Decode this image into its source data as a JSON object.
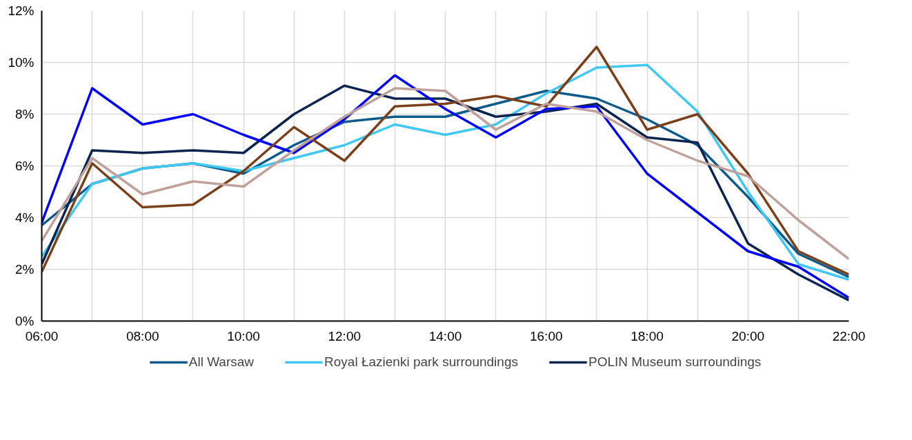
{
  "chart_data": {
    "type": "line",
    "x": [
      6,
      7,
      8,
      9,
      10,
      11,
      12,
      13,
      14,
      15,
      16,
      17,
      18,
      19,
      20,
      21,
      22
    ],
    "series": [
      {
        "name": "All Warsaw",
        "color": "#0b5a8c",
        "values": [
          3.7,
          5.3,
          5.9,
          6.1,
          5.7,
          6.8,
          7.7,
          7.9,
          7.9,
          8.4,
          8.9,
          8.6,
          7.8,
          6.8,
          4.8,
          2.6,
          1.7
        ]
      },
      {
        "name": "Royal Łazienki park surroundings",
        "color": "#40c8f4",
        "values": [
          2.5,
          5.3,
          5.9,
          6.1,
          5.8,
          6.3,
          6.8,
          7.6,
          7.2,
          7.6,
          8.8,
          9.8,
          9.9,
          8.1,
          5.0,
          2.2,
          1.6
        ]
      },
      {
        "name": "POLIN Museum surroundings",
        "color": "#0b2550",
        "values": [
          2.2,
          6.6,
          6.5,
          6.6,
          6.5,
          8.0,
          9.1,
          8.6,
          8.6,
          7.9,
          8.1,
          8.4,
          7.1,
          6.9,
          3.0,
          1.8,
          0.8
        ]
      },
      {
        "color": "#0000ff",
        "values": [
          3.8,
          9.0,
          7.6,
          8.0,
          7.2,
          6.5,
          7.8,
          9.5,
          8.2,
          7.1,
          8.2,
          8.3,
          5.7,
          4.2,
          2.7,
          2.1,
          0.9
        ]
      },
      {
        "color": "#7b3f1a",
        "values": [
          1.9,
          6.1,
          4.4,
          4.5,
          5.8,
          7.5,
          6.2,
          8.3,
          8.4,
          8.7,
          8.3,
          10.6,
          7.4,
          8.0,
          5.7,
          2.7,
          1.8
        ]
      },
      {
        "color": "#c0a09a",
        "values": [
          3.1,
          6.3,
          4.9,
          5.4,
          5.2,
          6.6,
          7.9,
          9.0,
          8.9,
          7.4,
          8.4,
          8.1,
          7.0,
          6.2,
          5.6,
          3.9,
          2.4
        ]
      }
    ],
    "xlim": [
      6,
      22
    ],
    "xticks": [
      {
        "value": 6,
        "label": "06:00"
      },
      {
        "value": 7,
        "label": null
      },
      {
        "value": 8,
        "label": "08:00"
      },
      {
        "value": 9,
        "label": null
      },
      {
        "value": 10,
        "label": "10:00"
      },
      {
        "value": 11,
        "label": null
      },
      {
        "value": 12,
        "label": "12:00"
      },
      {
        "value": 13,
        "label": null
      },
      {
        "value": 14,
        "label": "14:00"
      },
      {
        "value": 15,
        "label": null
      },
      {
        "value": 16,
        "label": "16:00"
      },
      {
        "value": 17,
        "label": null
      },
      {
        "value": 18,
        "label": "18:00"
      },
      {
        "value": 19,
        "label": null
      },
      {
        "value": 20,
        "label": "20:00"
      },
      {
        "value": 21,
        "label": null
      },
      {
        "value": 22,
        "label": "22:00"
      }
    ],
    "ylim": [
      0,
      12
    ],
    "yticks": [
      {
        "value": 0,
        "label": "0%"
      },
      {
        "value": 2,
        "label": "2%"
      },
      {
        "value": 4,
        "label": "4%"
      },
      {
        "value": 6,
        "label": "6%"
      },
      {
        "value": 8,
        "label": "8%"
      },
      {
        "value": 10,
        "label": "10%"
      },
      {
        "value": 12,
        "label": "12%"
      }
    ],
    "grid": true,
    "legend": "bottom",
    "line_style": "solid"
  }
}
